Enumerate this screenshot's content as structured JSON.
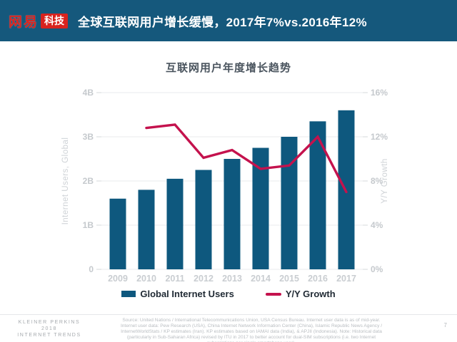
{
  "header": {
    "logo_text": "网易",
    "logo_badge": "科技",
    "title": "全球互联网用户增长缓慢，2017年7%vs.2016年12%"
  },
  "chart": {
    "title": "互联网用户年度增长趋势"
  },
  "chart_data": {
    "type": "bar+line",
    "title": "互联网用户年度增长趋势",
    "categories": [
      "2009",
      "2010",
      "2011",
      "2012",
      "2013",
      "2014",
      "2015",
      "2016",
      "2017"
    ],
    "series": [
      {
        "name": "Global Internet Users",
        "type": "bar",
        "axis": "left",
        "color": "#0e587e",
        "units": "billions",
        "values": [
          1.6,
          1.8,
          2.05,
          2.25,
          2.5,
          2.75,
          3.0,
          3.35,
          3.6
        ]
      },
      {
        "name": "Y/Y Growth",
        "type": "line",
        "axis": "right",
        "color": "#c4124d",
        "units": "percent",
        "values": [
          null,
          12.8,
          13.1,
          10.1,
          10.8,
          9.1,
          9.4,
          12.0,
          7.0
        ]
      }
    ],
    "left_axis": {
      "title": "Internet Users, Global",
      "min": 0,
      "max": 4,
      "ticks": [
        {
          "v": 0,
          "label": "0"
        },
        {
          "v": 1,
          "label": "1B"
        },
        {
          "v": 2,
          "label": "2B"
        },
        {
          "v": 3,
          "label": "3B"
        },
        {
          "v": 4,
          "label": "4B"
        }
      ]
    },
    "right_axis": {
      "title": "Y/Y Growth",
      "min": 0,
      "max": 16,
      "ticks": [
        {
          "v": 0,
          "label": "0%"
        },
        {
          "v": 4,
          "label": "4%"
        },
        {
          "v": 8,
          "label": "8%"
        },
        {
          "v": 12,
          "label": "12%"
        },
        {
          "v": 16,
          "label": "16%"
        }
      ]
    },
    "grid": true,
    "legend_position": "bottom"
  },
  "footer": {
    "brand_line1": "KLEINER PERKINS",
    "brand_line2": "2018",
    "brand_line3": "INTERNET TRENDS",
    "source_text": "Source: United Nations / International Telecommunications Union, USA Census Bureau. Internet user data is as of mid-year. Internet user data: Pew Research (USA), China Internet Network Information Center (China), Islamic Republic News Agency / InternetWorldStats / KP estimates (Iran). KP estimates based on IAMAI data (India), & APJII (Indonesia). Note: Historical data (particularly in Sub-Saharan Africa) revised by ITU in 2017 to better account for dual-SIM subscriptions (i.e. two Internet subscriptions per single smartphone user).",
    "page_number": "7"
  },
  "colors": {
    "header_bg": "#15587c",
    "logo_red": "#d8231e",
    "header_text": "#ffffff",
    "chart_title_text": "#4a545e",
    "axis_text": "#c5c9cd",
    "legend_text": "#1f2933",
    "gridline": "#e9ebec"
  }
}
